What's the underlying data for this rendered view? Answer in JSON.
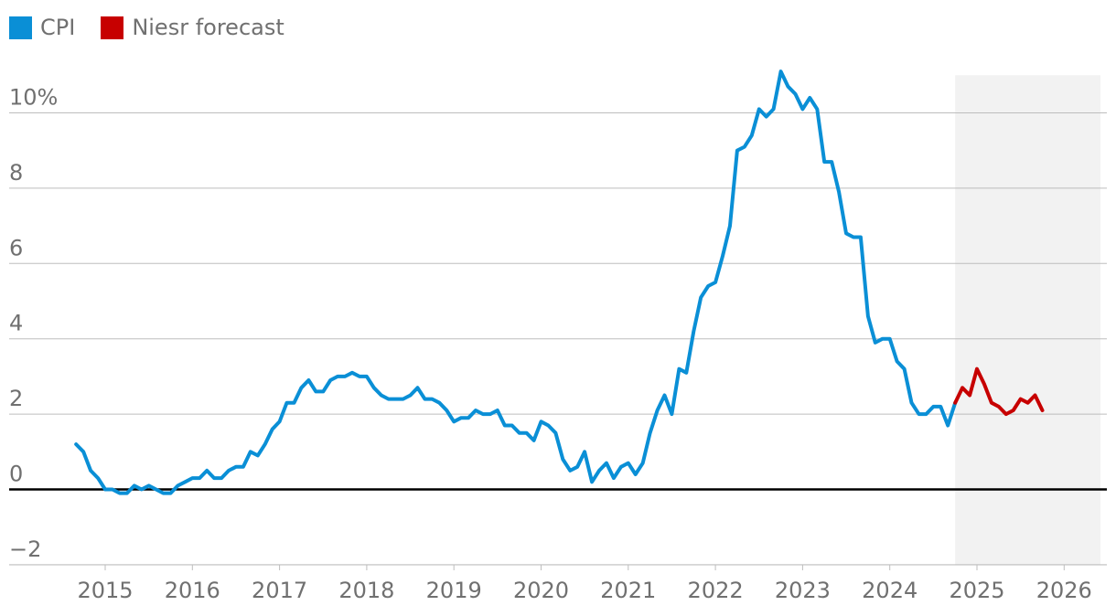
{
  "legend": [
    {
      "label": "CPI",
      "color": "#0a8fd6"
    },
    {
      "label": "Niesr forecast",
      "color": "#c70000"
    }
  ],
  "colors": {
    "cpi": "#0a8fd6",
    "forecast": "#c70000",
    "forecast_band": "#f2f2f2",
    "grid": "#bdbdbd",
    "zero_line": "#000000",
    "axis_text": "#707070"
  },
  "chart_data": {
    "type": "line",
    "title": "",
    "xlabel": "",
    "ylabel": "",
    "ylim": [
      -2,
      11
    ],
    "xlim": [
      2014.0,
      2026.5
    ],
    "y_ticks": [
      {
        "value": -2,
        "label": "−2"
      },
      {
        "value": 0,
        "label": "0"
      },
      {
        "value": 2,
        "label": "2"
      },
      {
        "value": 4,
        "label": "4"
      },
      {
        "value": 6,
        "label": "6"
      },
      {
        "value": 8,
        "label": "8"
      },
      {
        "value": 10,
        "label": "10%"
      }
    ],
    "x_ticks": [
      2015,
      2016,
      2017,
      2018,
      2019,
      2020,
      2021,
      2022,
      2023,
      2024,
      2025,
      2026
    ],
    "grid": true,
    "legend_position": "top-left",
    "forecast_band": {
      "start": "2024-10",
      "end": "2026-06"
    },
    "series": [
      {
        "name": "CPI",
        "color": "#0a8fd6",
        "x": [
          "2014-09",
          "2014-10",
          "2014-11",
          "2014-12",
          "2015-01",
          "2015-02",
          "2015-03",
          "2015-04",
          "2015-05",
          "2015-06",
          "2015-07",
          "2015-08",
          "2015-09",
          "2015-10",
          "2015-11",
          "2015-12",
          "2016-01",
          "2016-02",
          "2016-03",
          "2016-04",
          "2016-05",
          "2016-06",
          "2016-07",
          "2016-08",
          "2016-09",
          "2016-10",
          "2016-11",
          "2016-12",
          "2017-01",
          "2017-02",
          "2017-03",
          "2017-04",
          "2017-05",
          "2017-06",
          "2017-07",
          "2017-08",
          "2017-09",
          "2017-10",
          "2017-11",
          "2017-12",
          "2018-01",
          "2018-02",
          "2018-03",
          "2018-04",
          "2018-05",
          "2018-06",
          "2018-07",
          "2018-08",
          "2018-09",
          "2018-10",
          "2018-11",
          "2018-12",
          "2019-01",
          "2019-02",
          "2019-03",
          "2019-04",
          "2019-05",
          "2019-06",
          "2019-07",
          "2019-08",
          "2019-09",
          "2019-10",
          "2019-11",
          "2019-12",
          "2020-01",
          "2020-02",
          "2020-03",
          "2020-04",
          "2020-05",
          "2020-06",
          "2020-07",
          "2020-08",
          "2020-09",
          "2020-10",
          "2020-11",
          "2020-12",
          "2021-01",
          "2021-02",
          "2021-03",
          "2021-04",
          "2021-05",
          "2021-06",
          "2021-07",
          "2021-08",
          "2021-09",
          "2021-10",
          "2021-11",
          "2021-12",
          "2022-01",
          "2022-02",
          "2022-03",
          "2022-04",
          "2022-05",
          "2022-06",
          "2022-07",
          "2022-08",
          "2022-09",
          "2022-10",
          "2022-11",
          "2022-12",
          "2023-01",
          "2023-02",
          "2023-03",
          "2023-04",
          "2023-05",
          "2023-06",
          "2023-07",
          "2023-08",
          "2023-09",
          "2023-10",
          "2023-11",
          "2023-12",
          "2024-01",
          "2024-02",
          "2024-03",
          "2024-04",
          "2024-05",
          "2024-06",
          "2024-07",
          "2024-08",
          "2024-09",
          "2024-10"
        ],
        "values": [
          1.2,
          1.0,
          0.5,
          0.3,
          0.0,
          0.0,
          -0.1,
          -0.1,
          0.1,
          0.0,
          0.1,
          0.0,
          -0.1,
          -0.1,
          0.1,
          0.2,
          0.3,
          0.3,
          0.5,
          0.3,
          0.3,
          0.5,
          0.6,
          0.6,
          1.0,
          0.9,
          1.2,
          1.6,
          1.8,
          2.3,
          2.3,
          2.7,
          2.9,
          2.6,
          2.6,
          2.9,
          3.0,
          3.0,
          3.1,
          3.0,
          3.0,
          2.7,
          2.5,
          2.4,
          2.4,
          2.4,
          2.5,
          2.7,
          2.4,
          2.4,
          2.3,
          2.1,
          1.8,
          1.9,
          1.9,
          2.1,
          2.0,
          2.0,
          2.1,
          1.7,
          1.7,
          1.5,
          1.5,
          1.3,
          1.8,
          1.7,
          1.5,
          0.8,
          0.5,
          0.6,
          1.0,
          0.2,
          0.5,
          0.7,
          0.3,
          0.6,
          0.7,
          0.4,
          0.7,
          1.5,
          2.1,
          2.5,
          2.0,
          3.2,
          3.1,
          4.2,
          5.1,
          5.4,
          5.5,
          6.2,
          7.0,
          9.0,
          9.1,
          9.4,
          10.1,
          9.9,
          10.1,
          11.1,
          10.7,
          10.5,
          10.1,
          10.4,
          10.1,
          8.7,
          8.7,
          7.9,
          6.8,
          6.7,
          6.7,
          4.6,
          3.9,
          4.0,
          4.0,
          3.4,
          3.2,
          2.3,
          2.0,
          2.0,
          2.2,
          2.2,
          1.7,
          2.3
        ]
      },
      {
        "name": "Niesr forecast",
        "color": "#c70000",
        "x": [
          "2024-10",
          "2024-11",
          "2024-12",
          "2025-01",
          "2025-02",
          "2025-03",
          "2025-04",
          "2025-05",
          "2025-06",
          "2025-07",
          "2025-08",
          "2025-09",
          "2025-10"
        ],
        "values": [
          2.3,
          2.7,
          2.5,
          3.2,
          2.8,
          2.3,
          2.2,
          2.0,
          2.1,
          2.4,
          2.3,
          2.5,
          2.1
        ]
      }
    ]
  }
}
